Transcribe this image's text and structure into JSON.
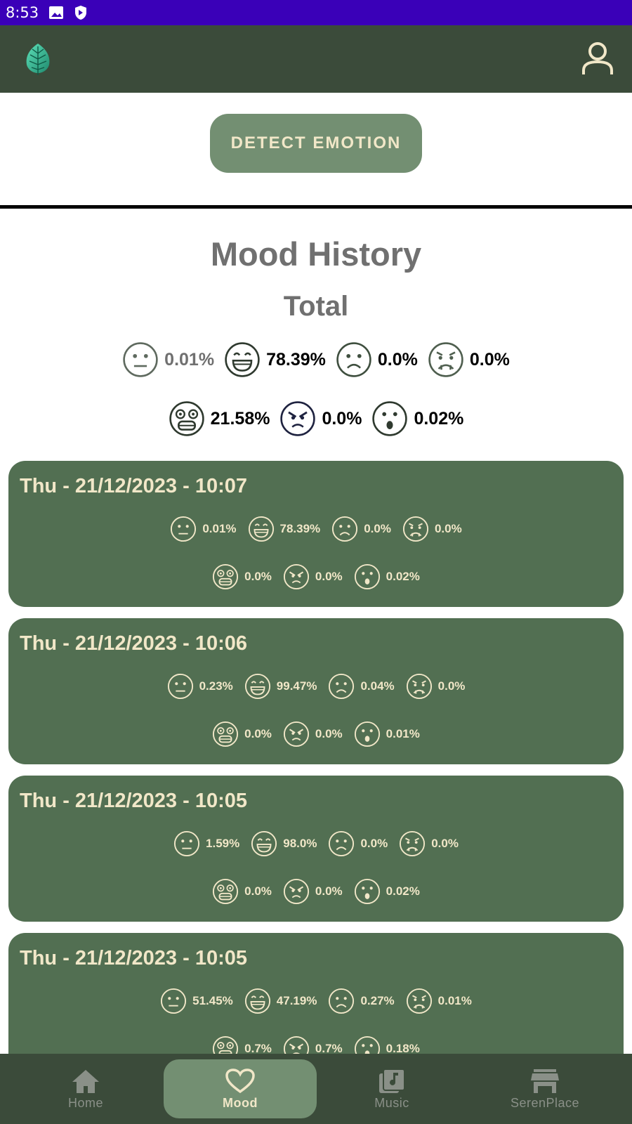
{
  "status_bar": {
    "time": "8:53"
  },
  "detect_button": {
    "label": "DETECT EMOTION"
  },
  "mood_history": {
    "title": "Mood History",
    "subtitle": "Total",
    "total": {
      "neutral": "0.01%",
      "happy": "78.39%",
      "sad": "0.0%",
      "disgust": "0.0%",
      "fear": "21.58%",
      "angry": "0.0%",
      "surprise": "0.02%"
    }
  },
  "entries": [
    {
      "date": "Thu - 21/12/2023 - 10:07",
      "neutral": "0.01%",
      "happy": "78.39%",
      "sad": "0.0%",
      "disgust": "0.0%",
      "fear": "0.0%",
      "angry": "0.0%",
      "surprise": "0.02%"
    },
    {
      "date": "Thu - 21/12/2023 - 10:06",
      "neutral": "0.23%",
      "happy": "99.47%",
      "sad": "0.04%",
      "disgust": "0.0%",
      "fear": "0.0%",
      "angry": "0.0%",
      "surprise": "0.01%"
    },
    {
      "date": "Thu - 21/12/2023 - 10:05",
      "neutral": "1.59%",
      "happy": "98.0%",
      "sad": "0.0%",
      "disgust": "0.0%",
      "fear": "0.0%",
      "angry": "0.0%",
      "surprise": "0.02%"
    },
    {
      "date": "Thu - 21/12/2023 - 10:05",
      "neutral": "51.45%",
      "happy": "47.19%",
      "sad": "0.27%",
      "disgust": "0.01%",
      "fear": "0.7%",
      "angry": "0.7%",
      "surprise": "0.18%"
    }
  ],
  "bottom_nav": {
    "items": [
      {
        "label": "Home",
        "icon": "home-icon"
      },
      {
        "label": "Mood",
        "icon": "heart-icon",
        "active": true
      },
      {
        "label": "Music",
        "icon": "music-library-icon"
      },
      {
        "label": "SerenPlace",
        "icon": "store-icon"
      }
    ]
  },
  "colors": {
    "status_bar": "#3a00b8",
    "app_bar": "#3b4b3a",
    "card": "#526f52",
    "accent": "#738f72",
    "cream": "#f1e7c8"
  }
}
